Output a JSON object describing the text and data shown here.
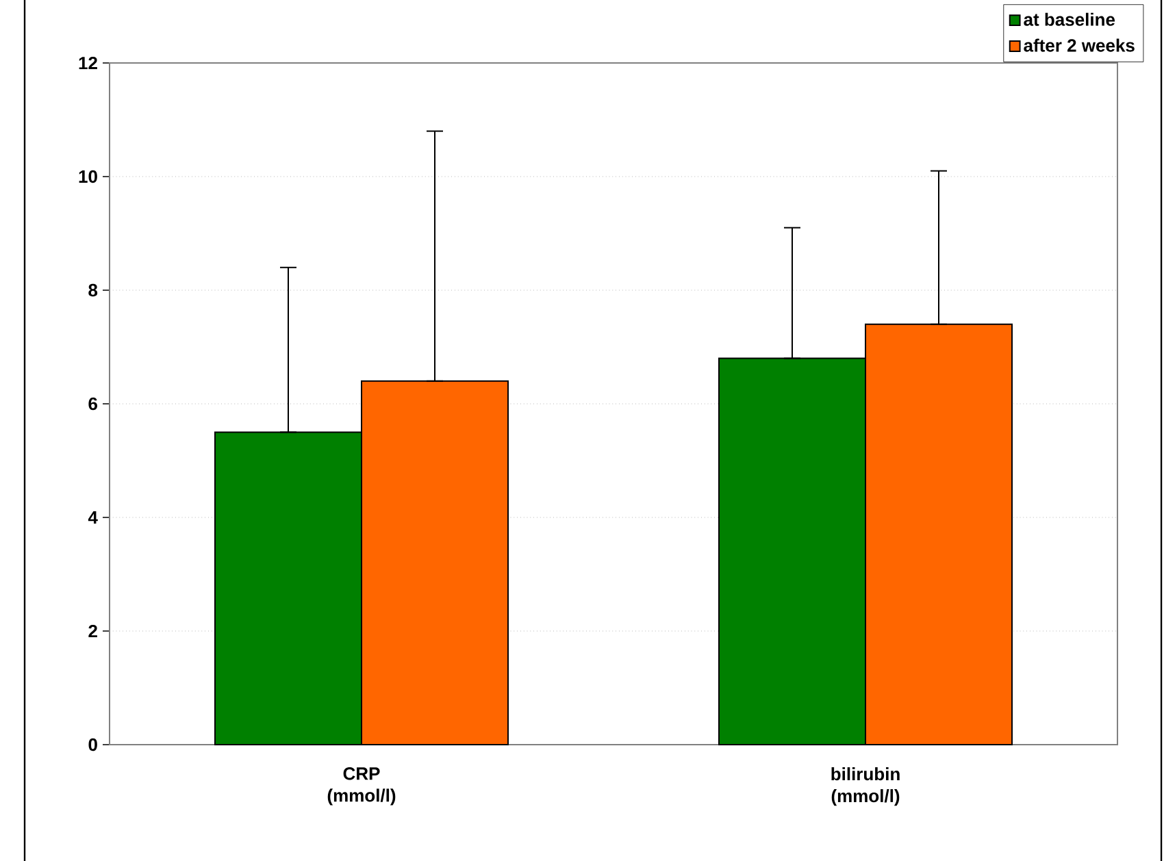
{
  "chart_data": {
    "type": "bar",
    "categories": [
      "CRP (mmol/l)",
      "bilirubin (mmol/l)"
    ],
    "series": [
      {
        "name": "at baseline",
        "color": "#008000",
        "values": [
          5.5,
          6.8
        ],
        "errors": [
          [
            5.5,
            8.4
          ],
          [
            6.8,
            9.1
          ]
        ]
      },
      {
        "name": "after 2 weeks",
        "color": "#ff6600",
        "values": [
          6.4,
          7.4
        ],
        "errors": [
          [
            6.4,
            10.8
          ],
          [
            7.4,
            10.1
          ]
        ]
      }
    ],
    "ylim": [
      0,
      12
    ],
    "yticks": [
      0,
      2,
      4,
      6,
      8,
      10,
      12
    ],
    "grid": "y",
    "legend": "top right"
  }
}
